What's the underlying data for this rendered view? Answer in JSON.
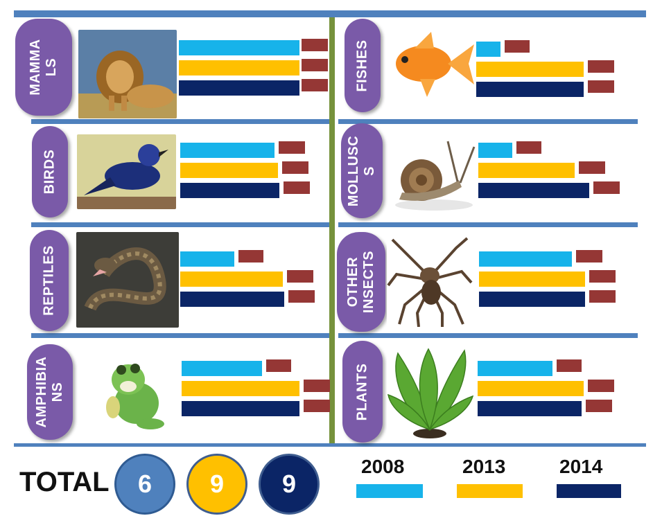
{
  "colors": {
    "2008": "#17b3ea",
    "2013": "#ffc000",
    "2014": "#0b2566",
    "marker": "#953735",
    "badge": "#7a5aa8"
  },
  "chart_data": {
    "type": "bar",
    "orientation": "horizontal",
    "title": "",
    "series_names": [
      "2008",
      "2013",
      "2014"
    ],
    "value_scale_max": 10,
    "categories": [
      {
        "name": "MAMMA\nLS",
        "values": [
          7.2,
          7.2,
          7.2
        ],
        "icon": "lion-icon"
      },
      {
        "name": "BIRDS",
        "values": [
          5.8,
          6.0,
          6.1
        ],
        "icon": "bird-icon"
      },
      {
        "name": "REPTILES",
        "values": [
          3.3,
          6.3,
          6.4
        ],
        "icon": "snake-icon"
      },
      {
        "name": "AMPHIBIA\nNS",
        "values": [
          4.9,
          7.2,
          7.2
        ],
        "icon": "frog-icon"
      },
      {
        "name": "FISHES",
        "values": [
          1.5,
          6.6,
          6.6
        ],
        "icon": "goldfish-icon"
      },
      {
        "name": "MOLLUSC\nS",
        "values": [
          2.1,
          5.9,
          6.8
        ],
        "icon": "snail-icon"
      },
      {
        "name": "OTHER\nINSECTS",
        "values": [
          5.7,
          6.5,
          6.5
        ],
        "icon": "spider-icon"
      },
      {
        "name": "PLANTS",
        "values": [
          4.6,
          6.5,
          6.4
        ],
        "icon": "plant-icon"
      }
    ]
  },
  "totals": {
    "label": "TOTAL",
    "values": [
      "6",
      "9",
      "9"
    ],
    "colors": [
      "#4f81bd",
      "#ffc000",
      "#0b2566"
    ]
  },
  "legend": [
    {
      "label": "2008",
      "color": "#17b3ea"
    },
    {
      "label": "2013",
      "color": "#ffc000"
    },
    {
      "label": "2014",
      "color": "#0b2566"
    }
  ]
}
